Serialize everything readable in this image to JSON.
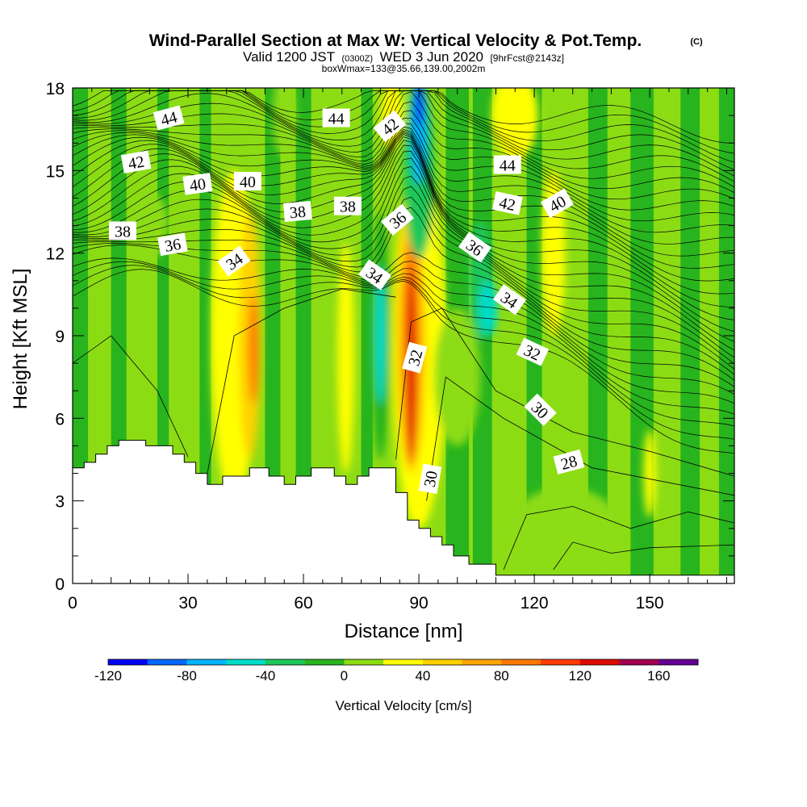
{
  "title": {
    "main": "Wind-Parallel Section at Max W: Vertical Velocity & Pot.Temp.",
    "copyright": "(C)",
    "valid_prefix": "Valid 1200 JST",
    "valid_utc": "(0300Z)",
    "valid_date": "WED 3 Jun 2020",
    "forecast": "[9hrFcst@2143z]",
    "box_info": "boxWmax=133@35.66,139.00,2002m"
  },
  "chart_data": {
    "type": "heatmap",
    "xlabel": "Distance [nm]",
    "ylabel": "Height [Kft MSL]",
    "xlim": [
      0,
      172
    ],
    "ylim": [
      0,
      18
    ],
    "x_ticks": [
      "0",
      "30",
      "60",
      "90",
      "120",
      "150"
    ],
    "x_tick_values": [
      0,
      30,
      60,
      90,
      120,
      150
    ],
    "y_ticks": [
      "0",
      "3",
      "6",
      "9",
      "12",
      "15",
      "18"
    ],
    "y_tick_values": [
      0,
      3,
      6,
      9,
      12,
      15,
      18
    ],
    "fill_field": "Vertical Velocity",
    "contour_field": "Potential Temperature",
    "colorbar": {
      "label": "Vertical Velocity [cm/s]",
      "tick_labels": [
        "-120",
        "-80",
        "-40",
        "0",
        "40",
        "80",
        "120",
        "160"
      ],
      "tick_values": [
        -120,
        -80,
        -40,
        0,
        40,
        80,
        120,
        160
      ],
      "bounds": [
        -120,
        -100,
        -80,
        -60,
        -40,
        -20,
        0,
        20,
        40,
        60,
        80,
        100,
        120,
        140,
        160,
        180
      ],
      "colors": [
        "#0000f5",
        "#0066ff",
        "#00b4ff",
        "#00dcc8",
        "#1ec85a",
        "#28b41e",
        "#8cdc14",
        "#ffff00",
        "#ffd200",
        "#ffa500",
        "#ff7800",
        "#ff3c00",
        "#dc0a00",
        "#a00050",
        "#640096"
      ]
    },
    "terrain": [
      [
        0,
        4.2
      ],
      [
        3,
        4.2
      ],
      [
        3,
        4.4
      ],
      [
        6,
        4.4
      ],
      [
        6,
        4.7
      ],
      [
        9,
        4.7
      ],
      [
        9,
        5.0
      ],
      [
        12,
        5.0
      ],
      [
        12,
        5.2
      ],
      [
        19,
        5.2
      ],
      [
        19,
        5.0
      ],
      [
        26,
        5.0
      ],
      [
        26,
        4.7
      ],
      [
        29,
        4.7
      ],
      [
        29,
        4.4
      ],
      [
        32,
        4.4
      ],
      [
        32,
        4.0
      ],
      [
        35,
        4.0
      ],
      [
        35,
        3.6
      ],
      [
        39,
        3.6
      ],
      [
        39,
        3.9
      ],
      [
        46,
        3.9
      ],
      [
        46,
        4.2
      ],
      [
        51,
        4.2
      ],
      [
        51,
        3.9
      ],
      [
        55,
        3.9
      ],
      [
        55,
        3.6
      ],
      [
        58,
        3.6
      ],
      [
        58,
        3.9
      ],
      [
        62,
        3.9
      ],
      [
        62,
        4.2
      ],
      [
        68,
        4.2
      ],
      [
        68,
        3.9
      ],
      [
        71,
        3.9
      ],
      [
        71,
        3.6
      ],
      [
        74,
        3.6
      ],
      [
        74,
        3.9
      ],
      [
        77,
        3.9
      ],
      [
        77,
        4.2
      ],
      [
        84,
        4.2
      ],
      [
        84,
        3.3
      ],
      [
        87,
        3.3
      ],
      [
        87,
        2.3
      ],
      [
        90,
        2.3
      ],
      [
        90,
        2.0
      ],
      [
        93,
        2.0
      ],
      [
        93,
        1.7
      ],
      [
        96,
        1.7
      ],
      [
        96,
        1.4
      ],
      [
        99,
        1.4
      ],
      [
        99,
        1.0
      ],
      [
        103,
        1.0
      ],
      [
        103,
        0.7
      ],
      [
        110,
        0.7
      ],
      [
        110,
        0.3
      ],
      [
        172,
        0.3
      ]
    ],
    "cells": [
      {
        "x": 42,
        "y": 9,
        "rx": 6,
        "ry": 6,
        "v": 30
      },
      {
        "x": 46,
        "y": 9,
        "rx": 2.8,
        "ry": 4.5,
        "v": 55
      },
      {
        "x": 47,
        "y": 8.5,
        "rx": 1.3,
        "ry": 2,
        "v": 85
      },
      {
        "x": 71,
        "y": 8.2,
        "rx": 2.2,
        "ry": 4.2,
        "v": 30
      },
      {
        "x": 80,
        "y": 9,
        "rx": 2.5,
        "ry": 4.5,
        "v": -20
      },
      {
        "x": 80,
        "y": 9,
        "rx": 1.4,
        "ry": 2.5,
        "v": -42
      },
      {
        "x": 90,
        "y": 8.5,
        "rx": 7,
        "ry": 6.5,
        "v": 30
      },
      {
        "x": 88,
        "y": 9,
        "rx": 4,
        "ry": 5,
        "v": 55
      },
      {
        "x": 88,
        "y": 8.5,
        "rx": 2.3,
        "ry": 4.2,
        "v": 95
      },
      {
        "x": 88,
        "y": 8,
        "rx": 1.1,
        "ry": 3.5,
        "v": 135
      },
      {
        "x": 83,
        "y": 17,
        "rx": 3,
        "ry": 1.2,
        "v": 30
      },
      {
        "x": 90,
        "y": 15,
        "rx": 4,
        "ry": 3.2,
        "v": -30
      },
      {
        "x": 90,
        "y": 16.5,
        "rx": 2,
        "ry": 2,
        "v": -65
      },
      {
        "x": 90,
        "y": 17.4,
        "rx": 1,
        "ry": 0.8,
        "v": -105
      },
      {
        "x": 106,
        "y": 11,
        "rx": 3,
        "ry": 2.2,
        "v": -30
      },
      {
        "x": 108,
        "y": 10,
        "rx": 2.4,
        "ry": 1,
        "v": -45
      },
      {
        "x": 115,
        "y": 17,
        "rx": 6,
        "ry": 1.6,
        "v": 30
      },
      {
        "x": 125,
        "y": 12,
        "rx": 3,
        "ry": 3,
        "v": 25
      },
      {
        "x": 150,
        "y": 4,
        "rx": 1.6,
        "ry": 1.6,
        "v": 35
      },
      {
        "x": 128,
        "y": 1.5,
        "rx": 16,
        "ry": 2,
        "v": 10
      },
      {
        "x": 100,
        "y": 7.5,
        "rx": 6,
        "ry": 2.5,
        "v": 5
      },
      {
        "x": 20,
        "y": 13,
        "rx": 5,
        "ry": 1.2,
        "v": 12
      },
      {
        "x": 55,
        "y": 17,
        "rx": 3,
        "ry": 1.5,
        "v": 12
      }
    ],
    "contour_labels": [
      {
        "text": "44",
        "x": 25,
        "y": 16.9,
        "angle": -15
      },
      {
        "text": "44",
        "x": 68.5,
        "y": 16.9,
        "angle": 0
      },
      {
        "text": "42",
        "x": 82.5,
        "y": 16.6,
        "angle": -40
      },
      {
        "text": "42",
        "x": 16.5,
        "y": 15.3,
        "angle": -10
      },
      {
        "text": "40",
        "x": 32.5,
        "y": 14.5,
        "angle": -8
      },
      {
        "text": "40",
        "x": 45.5,
        "y": 14.6,
        "angle": 0
      },
      {
        "text": "44",
        "x": 113,
        "y": 15.2,
        "angle": 0
      },
      {
        "text": "42",
        "x": 113,
        "y": 13.8,
        "angle": 12
      },
      {
        "text": "40",
        "x": 126,
        "y": 13.8,
        "angle": -30
      },
      {
        "text": "38",
        "x": 13,
        "y": 12.8,
        "angle": 0
      },
      {
        "text": "36",
        "x": 26,
        "y": 12.3,
        "angle": -10
      },
      {
        "text": "38",
        "x": 58.5,
        "y": 13.5,
        "angle": -5
      },
      {
        "text": "38",
        "x": 71.5,
        "y": 13.7,
        "angle": 0
      },
      {
        "text": "36",
        "x": 84.5,
        "y": 13.2,
        "angle": -40
      },
      {
        "text": "36",
        "x": 104.5,
        "y": 12.2,
        "angle": 35
      },
      {
        "text": "34",
        "x": 42,
        "y": 11.7,
        "angle": -35
      },
      {
        "text": "34",
        "x": 78.5,
        "y": 11.2,
        "angle": 35
      },
      {
        "text": "34",
        "x": 113.5,
        "y": 10.3,
        "angle": 35
      },
      {
        "text": "32",
        "x": 89,
        "y": 8.2,
        "angle": -75
      },
      {
        "text": "32",
        "x": 119.5,
        "y": 8.4,
        "angle": 25
      },
      {
        "text": "30",
        "x": 121.5,
        "y": 6.3,
        "angle": 45
      },
      {
        "text": "30",
        "x": 93,
        "y": 3.8,
        "angle": -80
      },
      {
        "text": "28",
        "x": 129,
        "y": 4.4,
        "angle": -15
      }
    ]
  }
}
